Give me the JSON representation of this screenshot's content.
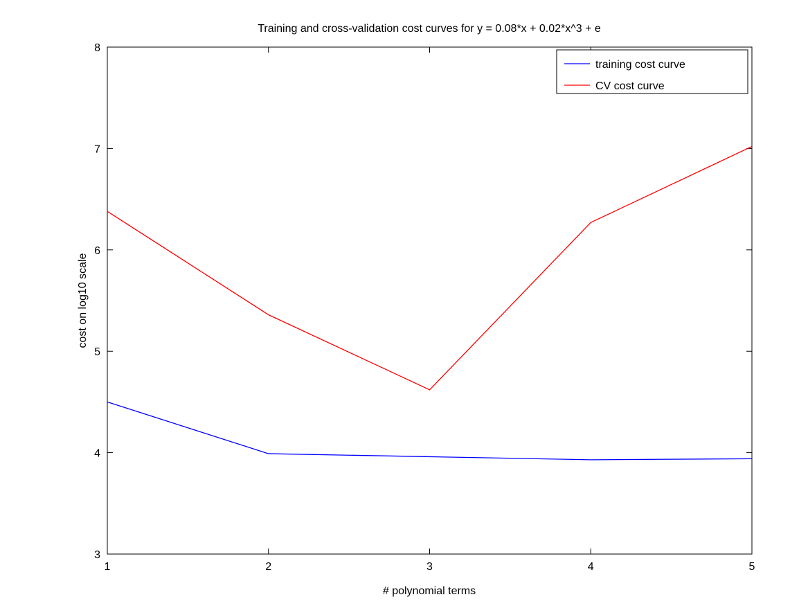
{
  "chart_data": {
    "type": "line",
    "title": "Training and cross-validation cost curves for y = 0.08*x + 0.02*x^3 + e",
    "xlabel": "# polynomial terms",
    "ylabel": "cost on log10 scale",
    "x": [
      1,
      2,
      3,
      4,
      5
    ],
    "xlim": [
      1,
      5
    ],
    "ylim": [
      3,
      8
    ],
    "xticks": [
      "1",
      "2",
      "3",
      "4",
      "5"
    ],
    "yticks": [
      "3",
      "4",
      "5",
      "6",
      "7",
      "8"
    ],
    "grid": false,
    "legend_position": "top-right",
    "series": [
      {
        "name": "training cost curve",
        "color": "#0000ff",
        "values": [
          4.5,
          3.99,
          3.96,
          3.93,
          3.94
        ]
      },
      {
        "name": "CV cost curve",
        "color": "#ff0000",
        "values": [
          6.38,
          5.36,
          4.62,
          6.27,
          7.02
        ]
      }
    ]
  }
}
